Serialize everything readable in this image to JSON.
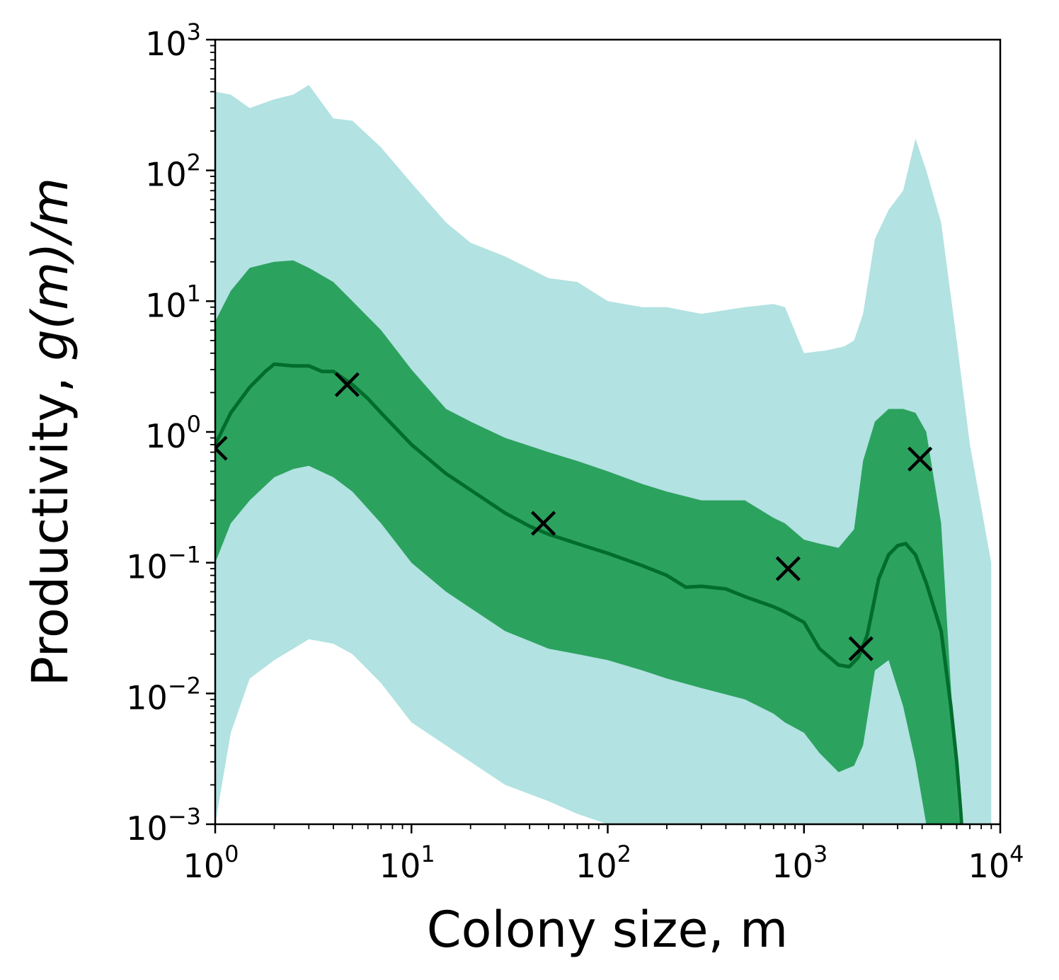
{
  "chart_data": {
    "type": "area",
    "xlabel": "Colony size, m",
    "ylabel": {
      "prefix": "Productivity, ",
      "math": "g(m)/m"
    },
    "xscale": "log",
    "yscale": "log",
    "xlim": [
      1,
      10000
    ],
    "ylim": [
      0.001,
      1000
    ],
    "xticks": [
      {
        "base": "10",
        "exp": "0",
        "value": 1
      },
      {
        "base": "10",
        "exp": "1",
        "value": 10
      },
      {
        "base": "10",
        "exp": "2",
        "value": 100
      },
      {
        "base": "10",
        "exp": "3",
        "value": 1000
      },
      {
        "base": "10",
        "exp": "4",
        "value": 10000
      }
    ],
    "yticks": [
      {
        "base": "10",
        "exp": "−3",
        "value": 0.001
      },
      {
        "base": "10",
        "exp": "−2",
        "value": 0.01
      },
      {
        "base": "10",
        "exp": "−1",
        "value": 0.1
      },
      {
        "base": "10",
        "exp": "0",
        "value": 1
      },
      {
        "base": "10",
        "exp": "1",
        "value": 10
      },
      {
        "base": "10",
        "exp": "2",
        "value": 100
      },
      {
        "base": "10",
        "exp": "3",
        "value": 1000
      }
    ],
    "grid": false,
    "colors": {
      "outer_band": "#b2e2e2",
      "inner_band": "#2ca25f",
      "median_line": "#006d2c",
      "markers": "#000000"
    },
    "series": [
      {
        "role": "outer_band",
        "x": [
          1.0,
          1.2,
          1.5,
          2.0,
          2.5,
          3.0,
          4.0,
          5.0,
          7.0,
          10,
          15,
          20,
          30,
          50,
          70,
          100,
          150,
          200,
          300,
          500,
          700,
          800,
          1000,
          1300,
          1600,
          1800,
          2000,
          2300,
          2700,
          3200,
          3700,
          4200,
          5000,
          6000,
          7000,
          9000
        ],
        "upper": [
          400,
          380,
          300,
          350,
          380,
          450,
          250,
          240,
          150,
          80,
          40,
          28,
          22,
          15,
          14,
          10,
          9,
          9,
          8,
          9,
          9.5,
          9,
          4,
          4.2,
          4.5,
          5,
          8,
          30,
          50,
          70,
          175,
          100,
          40,
          5,
          0.8,
          0.1
        ],
        "lower": [
          0.001,
          0.005,
          0.013,
          0.018,
          0.022,
          0.026,
          0.024,
          0.02,
          0.012,
          0.006,
          0.004,
          0.003,
          0.002,
          0.0015,
          0.0012,
          0.001,
          0.0008,
          0.0006,
          0.0005,
          0.0004,
          0.00035,
          0.0003,
          0.00025,
          0.0002,
          0.00015,
          0.00012,
          0.0001,
          0.0001,
          0.0001,
          0.0001,
          0.0001,
          0.0001,
          0.0001,
          0.0001,
          0.0001,
          0.0001
        ]
      },
      {
        "role": "inner_band",
        "x": [
          1.0,
          1.2,
          1.5,
          2.0,
          2.5,
          3.0,
          4.0,
          5.0,
          7.0,
          10,
          15,
          20,
          30,
          50,
          70,
          100,
          150,
          200,
          300,
          500,
          700,
          800,
          1000,
          1200,
          1500,
          1800,
          2000,
          2300,
          2700,
          3200,
          3700,
          4200,
          5000,
          6000,
          7000
        ],
        "upper": [
          7,
          12,
          18,
          20,
          20.5,
          18,
          14,
          10,
          6,
          3,
          1.5,
          1.2,
          0.9,
          0.7,
          0.6,
          0.5,
          0.4,
          0.35,
          0.3,
          0.3,
          0.22,
          0.2,
          0.15,
          0.14,
          0.13,
          0.18,
          0.6,
          1.2,
          1.5,
          1.5,
          1.4,
          1.0,
          0.2,
          0.002,
          0.0001
        ],
        "lower": [
          0.1,
          0.2,
          0.3,
          0.45,
          0.52,
          0.55,
          0.45,
          0.35,
          0.2,
          0.1,
          0.06,
          0.045,
          0.03,
          0.022,
          0.02,
          0.018,
          0.015,
          0.013,
          0.011,
          0.009,
          0.007,
          0.006,
          0.005,
          0.0035,
          0.0025,
          0.0028,
          0.004,
          0.015,
          0.018,
          0.008,
          0.003,
          0.001,
          0.0003,
          0.0001,
          0.0001
        ]
      },
      {
        "role": "median_line",
        "x": [
          1.0,
          1.2,
          1.5,
          1.8,
          2.0,
          2.5,
          3.0,
          3.5,
          4.0,
          5.0,
          6.0,
          7.0,
          10,
          15,
          20,
          30,
          40,
          50,
          70,
          100,
          150,
          200,
          250,
          300,
          400,
          500,
          700,
          800,
          1000,
          1200,
          1500,
          1700,
          1900,
          2100,
          2400,
          2700,
          3000,
          3300,
          3700,
          4200,
          5000,
          5600,
          6000,
          6300,
          6600
        ],
        "y": [
          0.8,
          1.4,
          2.2,
          2.9,
          3.3,
          3.2,
          3.2,
          2.9,
          2.9,
          2.3,
          1.8,
          1.4,
          0.8,
          0.48,
          0.36,
          0.24,
          0.19,
          0.165,
          0.14,
          0.118,
          0.095,
          0.08,
          0.065,
          0.066,
          0.063,
          0.055,
          0.046,
          0.042,
          0.035,
          0.022,
          0.0165,
          0.016,
          0.019,
          0.028,
          0.075,
          0.115,
          0.135,
          0.14,
          0.115,
          0.07,
          0.03,
          0.008,
          0.003,
          0.0012,
          0.0004
        ]
      },
      {
        "role": "markers",
        "marker": "x",
        "x": [
          1.0,
          4.7,
          47,
          830,
          1950,
          3900
        ],
        "y": [
          0.75,
          2.3,
          0.2,
          0.09,
          0.022,
          0.62
        ]
      }
    ]
  }
}
